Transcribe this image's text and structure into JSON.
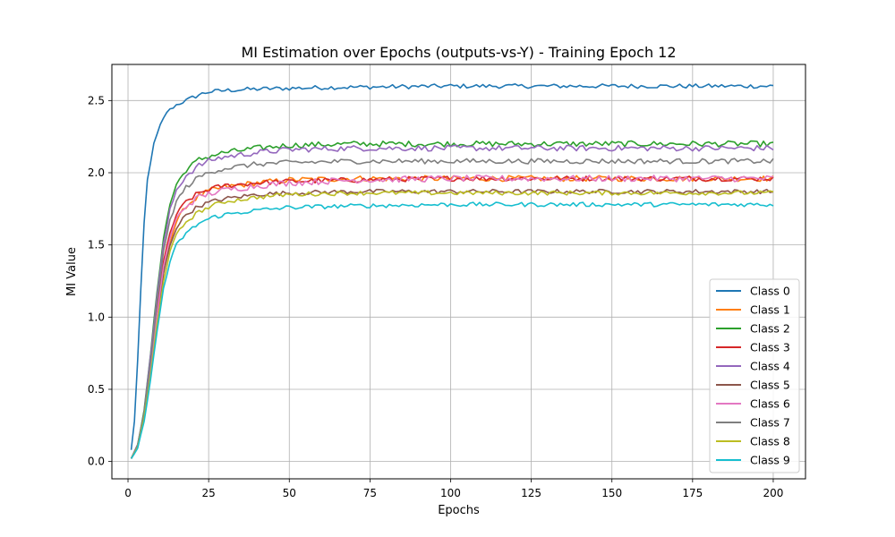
{
  "chart_data": {
    "type": "line",
    "title": "MI Estimation over Epochs (outputs-vs-Y) - Training Epoch 12",
    "xlabel": "Epochs",
    "ylabel": "MI Value",
    "xlim": [
      -5,
      210
    ],
    "ylim": [
      -0.12,
      2.75
    ],
    "x_ticks": [
      0,
      25,
      50,
      75,
      100,
      125,
      150,
      175,
      200
    ],
    "y_ticks": [
      0.0,
      0.5,
      1.0,
      1.5,
      2.0,
      2.5
    ],
    "x_tick_labels": [
      "0",
      "25",
      "50",
      "75",
      "100",
      "125",
      "150",
      "175",
      "200"
    ],
    "y_tick_labels": [
      "0.0",
      "0.5",
      "1.0",
      "1.5",
      "2.0",
      "2.5"
    ],
    "grid": true,
    "legend_position": "lower-right",
    "x_range": [
      1,
      200
    ],
    "series": [
      {
        "name": "Class 0",
        "color": "#1f77b4",
        "shape": [
          [
            1,
            0.08
          ],
          [
            2,
            0.28
          ],
          [
            3,
            0.7
          ],
          [
            4,
            1.2
          ],
          [
            5,
            1.65
          ],
          [
            6,
            1.95
          ],
          [
            8,
            2.2
          ],
          [
            10,
            2.33
          ],
          [
            12,
            2.42
          ],
          [
            15,
            2.47
          ],
          [
            18,
            2.5
          ],
          [
            22,
            2.54
          ],
          [
            25,
            2.56
          ],
          [
            30,
            2.57
          ],
          [
            40,
            2.58
          ],
          [
            60,
            2.59
          ],
          [
            100,
            2.6
          ],
          [
            200,
            2.6
          ]
        ],
        "noise": 0.015
      },
      {
        "name": "Class 1",
        "color": "#ff7f0e",
        "shape": [
          [
            1,
            0.02
          ],
          [
            3,
            0.1
          ],
          [
            5,
            0.3
          ],
          [
            7,
            0.62
          ],
          [
            9,
            0.98
          ],
          [
            11,
            1.3
          ],
          [
            13,
            1.52
          ],
          [
            15,
            1.66
          ],
          [
            18,
            1.77
          ],
          [
            22,
            1.84
          ],
          [
            26,
            1.88
          ],
          [
            30,
            1.9
          ],
          [
            40,
            1.93
          ],
          [
            50,
            1.95
          ],
          [
            70,
            1.96
          ],
          [
            100,
            1.96
          ],
          [
            200,
            1.96
          ]
        ],
        "noise": 0.02
      },
      {
        "name": "Class 2",
        "color": "#2ca02c",
        "shape": [
          [
            1,
            0.02
          ],
          [
            3,
            0.12
          ],
          [
            5,
            0.35
          ],
          [
            7,
            0.75
          ],
          [
            9,
            1.18
          ],
          [
            11,
            1.55
          ],
          [
            13,
            1.78
          ],
          [
            15,
            1.92
          ],
          [
            18,
            2.02
          ],
          [
            22,
            2.09
          ],
          [
            26,
            2.12
          ],
          [
            30,
            2.14
          ],
          [
            40,
            2.17
          ],
          [
            50,
            2.19
          ],
          [
            70,
            2.2
          ],
          [
            100,
            2.2
          ],
          [
            200,
            2.2
          ]
        ],
        "noise": 0.02
      },
      {
        "name": "Class 3",
        "color": "#d62728",
        "shape": [
          [
            1,
            0.02
          ],
          [
            3,
            0.11
          ],
          [
            5,
            0.32
          ],
          [
            7,
            0.68
          ],
          [
            9,
            1.05
          ],
          [
            11,
            1.38
          ],
          [
            13,
            1.58
          ],
          [
            15,
            1.71
          ],
          [
            18,
            1.8
          ],
          [
            22,
            1.86
          ],
          [
            26,
            1.89
          ],
          [
            30,
            1.91
          ],
          [
            40,
            1.93
          ],
          [
            50,
            1.94
          ],
          [
            70,
            1.95
          ],
          [
            100,
            1.96
          ],
          [
            200,
            1.96
          ]
        ],
        "noise": 0.018
      },
      {
        "name": "Class 4",
        "color": "#9467bd",
        "shape": [
          [
            1,
            0.02
          ],
          [
            3,
            0.12
          ],
          [
            5,
            0.34
          ],
          [
            7,
            0.74
          ],
          [
            9,
            1.15
          ],
          [
            11,
            1.5
          ],
          [
            13,
            1.74
          ],
          [
            15,
            1.88
          ],
          [
            18,
            1.98
          ],
          [
            22,
            2.05
          ],
          [
            26,
            2.09
          ],
          [
            30,
            2.11
          ],
          [
            40,
            2.14
          ],
          [
            50,
            2.16
          ],
          [
            70,
            2.17
          ],
          [
            100,
            2.17
          ],
          [
            200,
            2.17
          ]
        ],
        "noise": 0.02
      },
      {
        "name": "Class 5",
        "color": "#8c564b",
        "shape": [
          [
            1,
            0.02
          ],
          [
            3,
            0.1
          ],
          [
            5,
            0.3
          ],
          [
            7,
            0.63
          ],
          [
            9,
            1.0
          ],
          [
            11,
            1.3
          ],
          [
            13,
            1.5
          ],
          [
            15,
            1.62
          ],
          [
            18,
            1.71
          ],
          [
            22,
            1.77
          ],
          [
            26,
            1.8
          ],
          [
            30,
            1.82
          ],
          [
            40,
            1.85
          ],
          [
            50,
            1.86
          ],
          [
            70,
            1.87
          ],
          [
            100,
            1.87
          ],
          [
            200,
            1.87
          ]
        ],
        "noise": 0.015
      },
      {
        "name": "Class 6",
        "color": "#e377c2",
        "shape": [
          [
            1,
            0.02
          ],
          [
            3,
            0.1
          ],
          [
            5,
            0.31
          ],
          [
            7,
            0.65
          ],
          [
            9,
            1.02
          ],
          [
            11,
            1.35
          ],
          [
            13,
            1.55
          ],
          [
            15,
            1.68
          ],
          [
            18,
            1.77
          ],
          [
            22,
            1.83
          ],
          [
            26,
            1.86
          ],
          [
            30,
            1.88
          ],
          [
            40,
            1.91
          ],
          [
            50,
            1.93
          ],
          [
            70,
            1.95
          ],
          [
            100,
            1.96
          ],
          [
            200,
            1.96
          ]
        ],
        "noise": 0.022
      },
      {
        "name": "Class 7",
        "color": "#7f7f7f",
        "shape": [
          [
            1,
            0.02
          ],
          [
            3,
            0.11
          ],
          [
            5,
            0.33
          ],
          [
            7,
            0.7
          ],
          [
            9,
            1.1
          ],
          [
            11,
            1.45
          ],
          [
            13,
            1.67
          ],
          [
            15,
            1.8
          ],
          [
            18,
            1.9
          ],
          [
            22,
            1.97
          ],
          [
            26,
            2.01
          ],
          [
            30,
            2.03
          ],
          [
            40,
            2.06
          ],
          [
            50,
            2.07
          ],
          [
            70,
            2.08
          ],
          [
            100,
            2.08
          ],
          [
            200,
            2.08
          ]
        ],
        "noise": 0.018
      },
      {
        "name": "Class 8",
        "color": "#bcbd22",
        "shape": [
          [
            1,
            0.02
          ],
          [
            3,
            0.1
          ],
          [
            5,
            0.3
          ],
          [
            7,
            0.6
          ],
          [
            9,
            0.95
          ],
          [
            11,
            1.25
          ],
          [
            13,
            1.45
          ],
          [
            15,
            1.57
          ],
          [
            18,
            1.66
          ],
          [
            22,
            1.73
          ],
          [
            26,
            1.77
          ],
          [
            30,
            1.8
          ],
          [
            40,
            1.83
          ],
          [
            50,
            1.85
          ],
          [
            70,
            1.86
          ],
          [
            100,
            1.86
          ],
          [
            200,
            1.86
          ]
        ],
        "noise": 0.015
      },
      {
        "name": "Class 9",
        "color": "#17becf",
        "shape": [
          [
            1,
            0.02
          ],
          [
            3,
            0.09
          ],
          [
            5,
            0.28
          ],
          [
            7,
            0.57
          ],
          [
            9,
            0.9
          ],
          [
            11,
            1.2
          ],
          [
            13,
            1.38
          ],
          [
            15,
            1.5
          ],
          [
            18,
            1.58
          ],
          [
            22,
            1.65
          ],
          [
            26,
            1.69
          ],
          [
            30,
            1.71
          ],
          [
            40,
            1.74
          ],
          [
            50,
            1.76
          ],
          [
            70,
            1.77
          ],
          [
            100,
            1.78
          ],
          [
            200,
            1.78
          ]
        ],
        "noise": 0.015
      }
    ]
  }
}
